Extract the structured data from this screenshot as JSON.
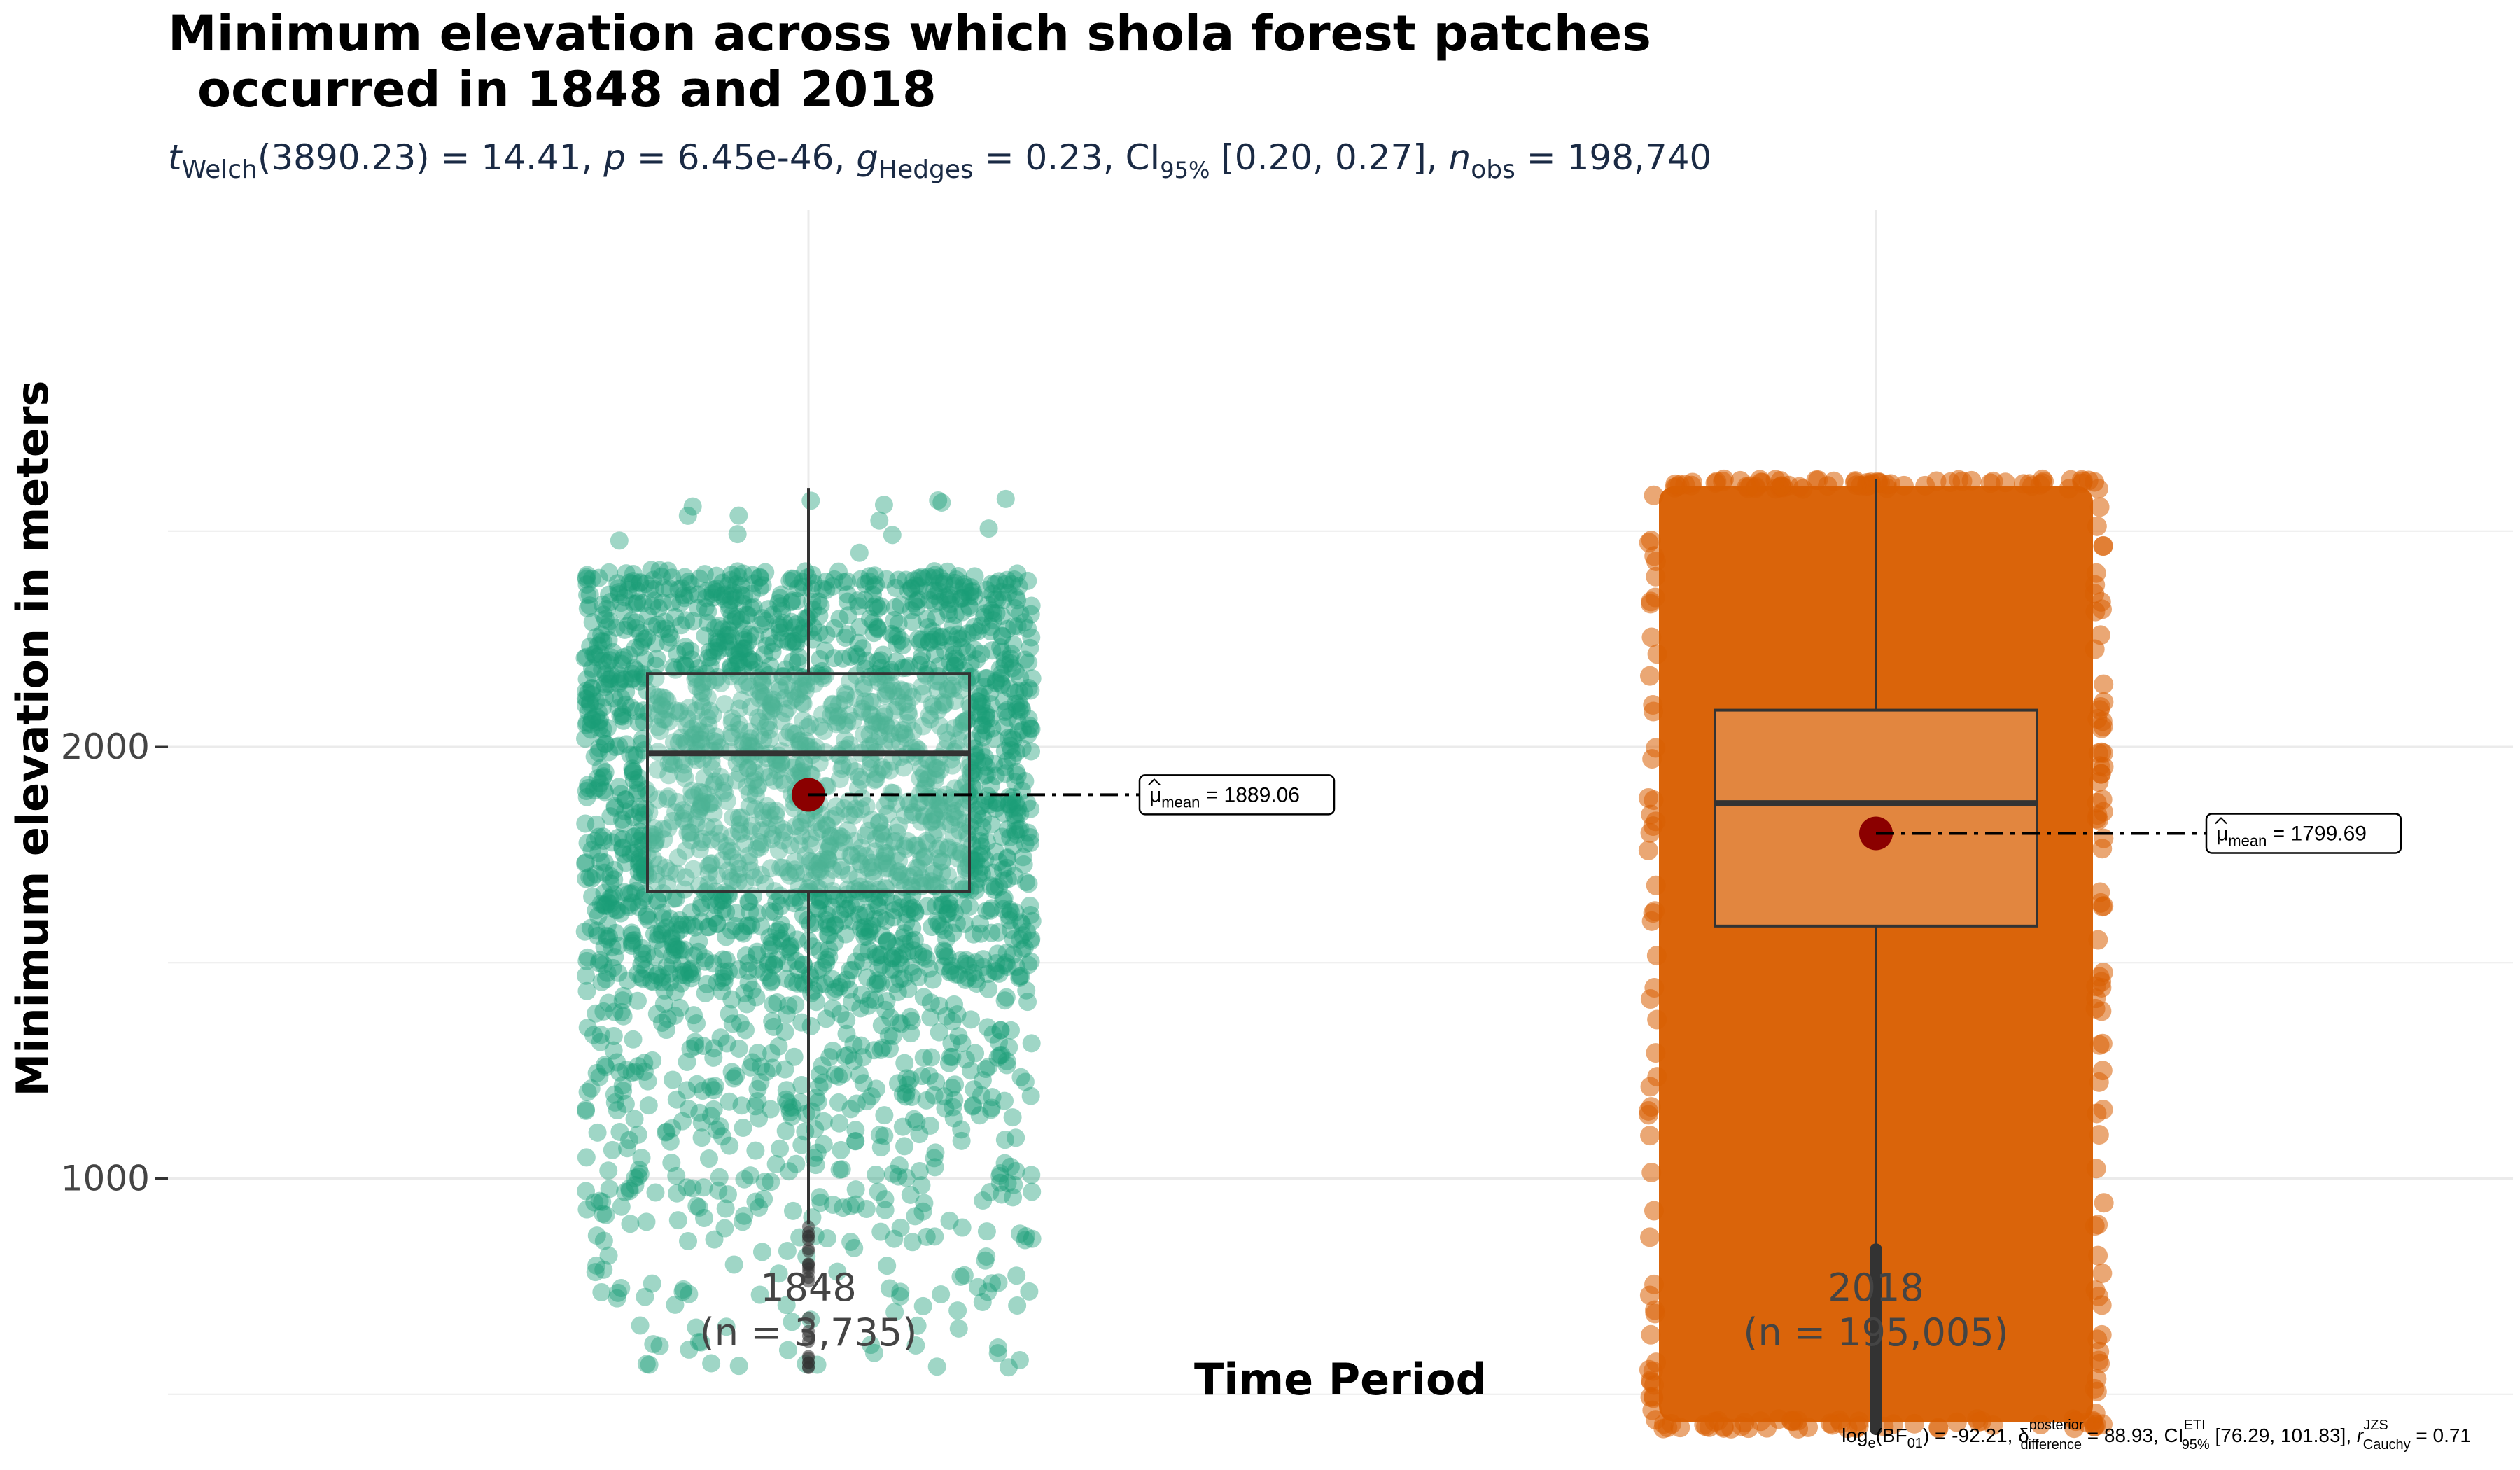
{
  "chart_data": {
    "type": "box",
    "title_lines": [
      "Minimum elevation across which shola forest patches",
      "occurred in 1848 and 2018"
    ],
    "subtitle": {
      "t_symbol": "t",
      "t_sub": "Welch",
      "t_value": "(3890.23) = 14.41, ",
      "p_symbol": "p",
      "p_value": " = 6.45e-46, ",
      "g_symbol": "g",
      "g_sub": "Hedges",
      "g_value": " = 0.23, CI",
      "ci_sub": "95%",
      "ci_value": " [0.20, 0.27], ",
      "n_symbol": "n",
      "n_sub": "obs",
      "n_value": " = 198,740"
    },
    "xlabel": "Time Period",
    "ylabel": "Minimum elevation in meters",
    "yticks": [
      1000,
      2000
    ],
    "ylim": [
      350,
      2620
    ],
    "grid": true,
    "series": [
      {
        "category": "1848",
        "count_label": "(n = 3,735)",
        "color": "#1b9e77",
        "n": 3735,
        "min": 560,
        "q1": 1665,
        "median": 1985,
        "q3": 2170,
        "max": 2600,
        "whisker_low": 895,
        "whisker_high": 2600,
        "outliers_range": [
          560,
          895
        ],
        "mean": 1889.06,
        "mean_label": {
          "symbol": "μ",
          "sub": "mean",
          "value": " = 1889.06"
        }
      },
      {
        "category": "2018",
        "count_label": "(n = 195,005)",
        "color": "#d95f02",
        "n": 195005,
        "min": 420,
        "q1": 1585,
        "median": 1870,
        "q3": 2085,
        "max": 2620,
        "whisker_low": 835,
        "whisker_high": 2620,
        "outliers_range": [
          420,
          835
        ],
        "mean": 1799.69,
        "mean_label": {
          "symbol": "μ",
          "sub": "mean",
          "value": " = 1799.69"
        }
      }
    ],
    "mean_color": "#8b0000",
    "caption": {
      "part1": "log",
      "part1_sub": "e",
      "part2": "(BF",
      "part2_sub": "01",
      "part3": ") = -92.21, ",
      "delta_symbol": "δ",
      "delta_sup": "posterior",
      "delta_sub": "difference",
      "delta_value": " = 88.93, CI",
      "ci_sup": "ETI",
      "ci_sub": "95%",
      "ci_value": " [76.29, 101.83], ",
      "r_symbol": "r",
      "r_sup": "JZS",
      "r_sub": "Cauchy",
      "r_value": " = 0.71"
    }
  }
}
